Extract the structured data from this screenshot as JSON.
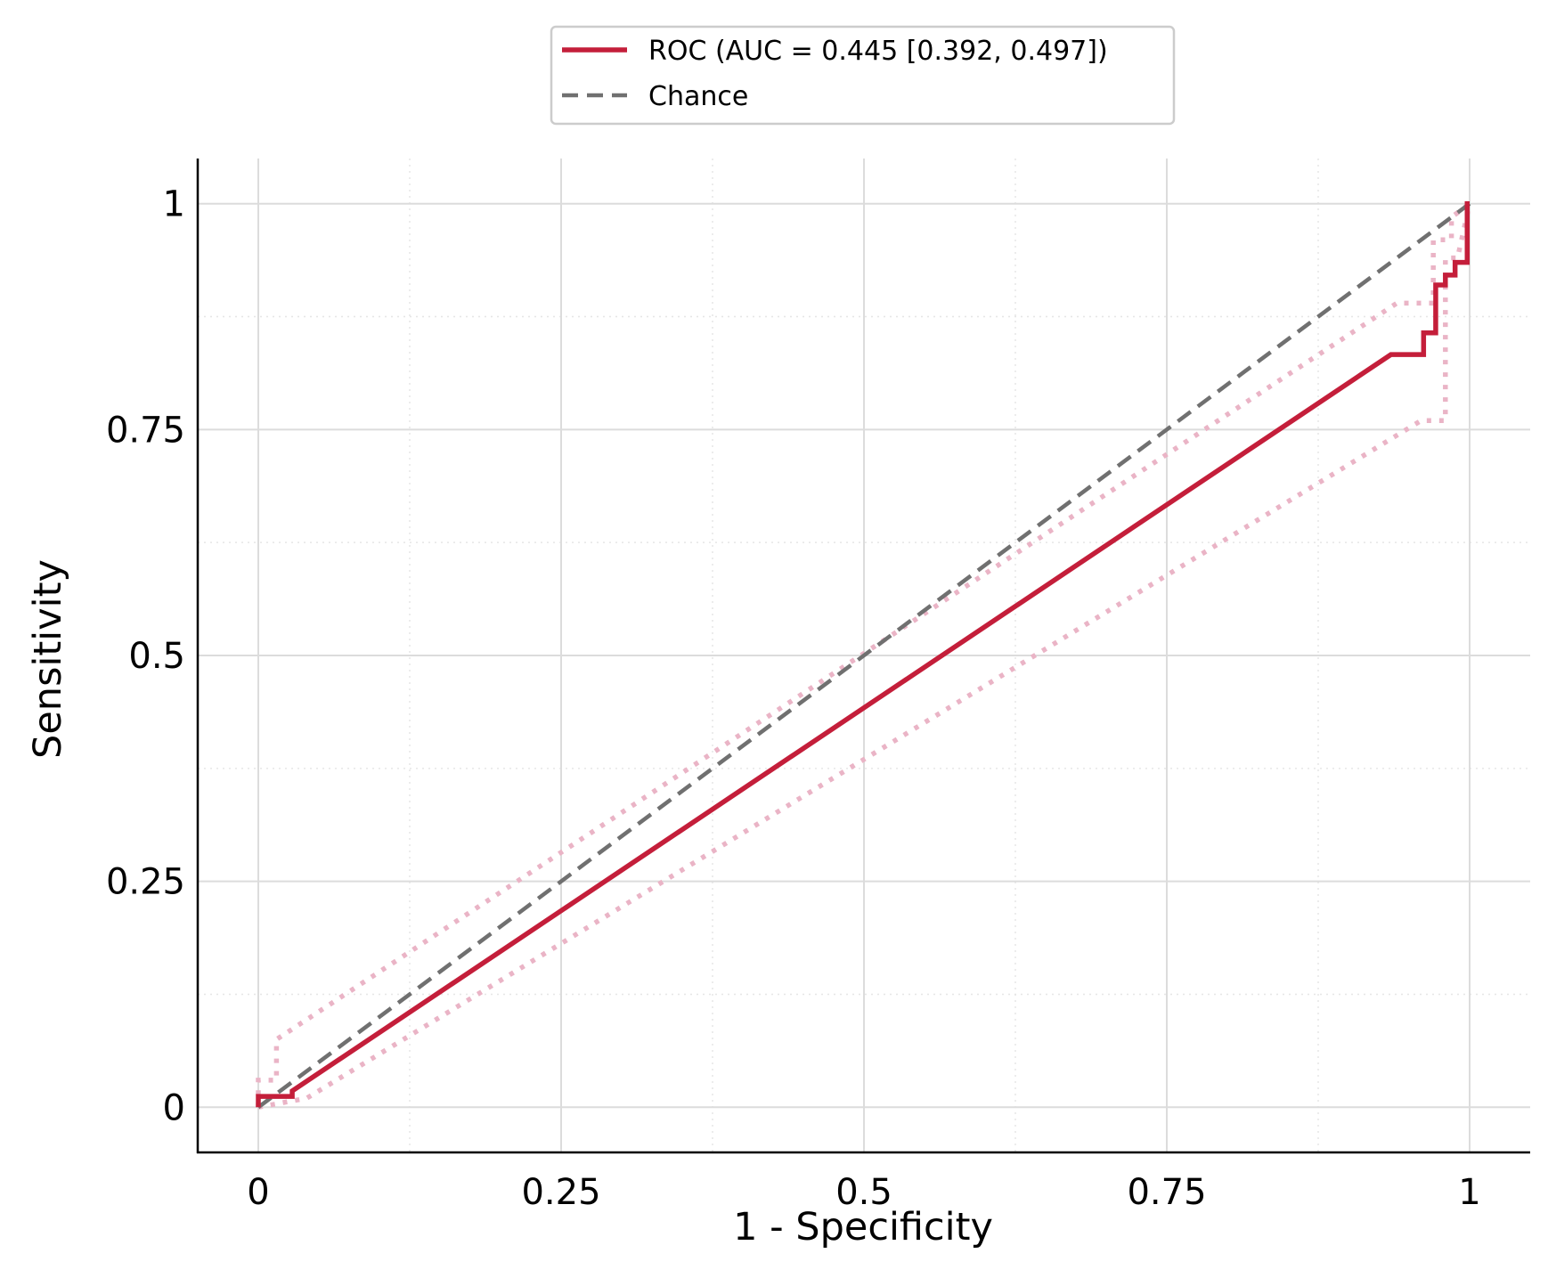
{
  "chart_data": {
    "type": "line",
    "xlabel": "1 - Specificity",
    "ylabel": "Sensitivity",
    "xlim": [
      -0.05,
      1.05
    ],
    "ylim": [
      -0.05,
      1.05
    ],
    "xticks": [
      {
        "value": 0,
        "label": "0"
      },
      {
        "value": 0.25,
        "label": "0.25"
      },
      {
        "value": 0.5,
        "label": "0.5"
      },
      {
        "value": 0.75,
        "label": "0.75"
      },
      {
        "value": 1,
        "label": "1"
      }
    ],
    "yticks": [
      {
        "value": 0,
        "label": "0"
      },
      {
        "value": 0.25,
        "label": "0.25"
      },
      {
        "value": 0.5,
        "label": "0.5"
      },
      {
        "value": 0.75,
        "label": "0.75"
      },
      {
        "value": 1,
        "label": "1"
      }
    ],
    "minor_ticks": [
      0.125,
      0.375,
      0.625,
      0.875
    ],
    "grid": true,
    "legend_position": "top-center",
    "series": [
      {
        "name": "ROC (AUC = 0.445 [0.392, 0.497])",
        "style": "solid",
        "color": "#c41e3a",
        "x": [
          0,
          0,
          0.028,
          0.028,
          0.935,
          0.962,
          0.962,
          0.972,
          0.972,
          0.98,
          0.98,
          0.988,
          0.988,
          0.998,
          0.998,
          1.0
        ],
        "y": [
          0,
          0.012,
          0.012,
          0.018,
          0.833,
          0.833,
          0.857,
          0.857,
          0.91,
          0.91,
          0.921,
          0.921,
          0.935,
          0.935,
          1.0,
          1.0
        ]
      },
      {
        "name": "Chance",
        "style": "dashed",
        "color": "#707070",
        "x": [
          0,
          1
        ],
        "y": [
          0,
          1
        ]
      }
    ],
    "bands": [
      {
        "style": "dotted",
        "color": "#eab4c6",
        "x": [
          0,
          0,
          0.015,
          0.015,
          0.94,
          0.97,
          0.97,
          0.985,
          0.985,
          1.0
        ],
        "y": [
          0,
          0.03,
          0.03,
          0.075,
          0.89,
          0.89,
          0.96,
          0.96,
          0.985,
          1.0
        ]
      },
      {
        "style": "dotted",
        "color": "#eab4c6",
        "x": [
          0,
          0.04,
          0.96,
          0.98,
          0.98,
          0.99,
          1.0
        ],
        "y": [
          0,
          0.01,
          0.76,
          0.76,
          0.94,
          0.94,
          1.0
        ]
      }
    ]
  }
}
